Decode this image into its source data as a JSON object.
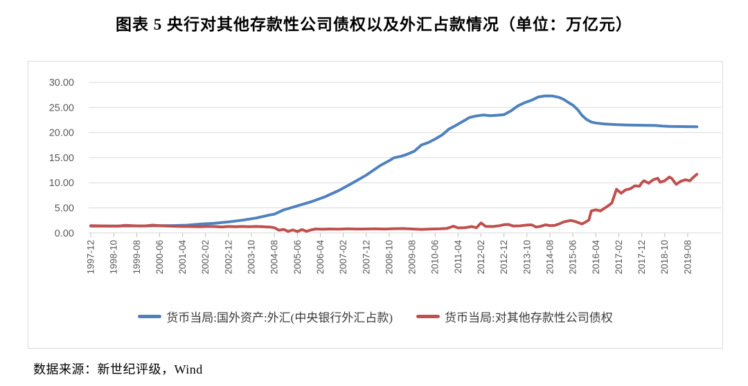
{
  "title": "图表 5  央行对其他存款性公司债权以及外汇占款情况（单位：万亿元）",
  "source_note": "数据来源：新世纪评级，Wind",
  "chart_data": {
    "type": "line",
    "title": "央行对其他存款性公司债权以及外汇占款情况",
    "unit": "万亿元",
    "grid": true,
    "legend_position": "bottom",
    "x_axis": {
      "encoding": "months since 1997-12 (tick every 10 months)",
      "tick_interval_months": 10,
      "tick_labels": [
        "1997-12",
        "1998-10",
        "1999-08",
        "2000-06",
        "2001-04",
        "2002-02",
        "2002-12",
        "2003-10",
        "2004-08",
        "2005-06",
        "2006-04",
        "2007-02",
        "2007-12",
        "2008-10",
        "2009-08",
        "2010-06",
        "2011-04",
        "2012-02",
        "2012-12",
        "2013-10",
        "2014-08",
        "2015-06",
        "2016-04",
        "2017-02",
        "2017-12",
        "2018-10",
        "2019-08"
      ]
    },
    "y_axis": {
      "min": 0,
      "max": 30,
      "step": 5,
      "tick_labels": [
        "0.00",
        "5.00",
        "10.00",
        "15.00",
        "20.00",
        "25.00",
        "30.00"
      ]
    },
    "series": [
      {
        "name": "货币当局:国外资产:外汇(中央银行外汇占款)",
        "color": "#4F81BD",
        "points": [
          [
            0,
            1.36
          ],
          [
            6,
            1.37
          ],
          [
            12,
            1.38
          ],
          [
            18,
            1.4
          ],
          [
            24,
            1.41
          ],
          [
            30,
            1.44
          ],
          [
            36,
            1.48
          ],
          [
            42,
            1.56
          ],
          [
            48,
            1.77
          ],
          [
            54,
            1.93
          ],
          [
            60,
            2.21
          ],
          [
            66,
            2.55
          ],
          [
            72,
            2.98
          ],
          [
            78,
            3.6
          ],
          [
            80,
            3.75
          ],
          [
            84,
            4.59
          ],
          [
            90,
            5.4
          ],
          [
            96,
            6.21
          ],
          [
            102,
            7.2
          ],
          [
            108,
            8.44
          ],
          [
            114,
            9.95
          ],
          [
            120,
            11.52
          ],
          [
            126,
            13.4
          ],
          [
            130,
            14.4
          ],
          [
            132,
            14.96
          ],
          [
            135,
            15.25
          ],
          [
            138,
            15.7
          ],
          [
            141,
            16.3
          ],
          [
            144,
            17.52
          ],
          [
            147,
            18.0
          ],
          [
            150,
            18.7
          ],
          [
            153,
            19.5
          ],
          [
            156,
            20.68
          ],
          [
            159,
            21.4
          ],
          [
            162,
            22.2
          ],
          [
            165,
            23.0
          ],
          [
            168,
            23.3
          ],
          [
            171,
            23.5
          ],
          [
            174,
            23.35
          ],
          [
            177,
            23.45
          ],
          [
            180,
            23.55
          ],
          [
            183,
            24.3
          ],
          [
            186,
            25.3
          ],
          [
            189,
            25.95
          ],
          [
            192,
            26.43
          ],
          [
            195,
            27.1
          ],
          [
            198,
            27.3
          ],
          [
            201,
            27.28
          ],
          [
            204,
            27.0
          ],
          [
            206,
            26.6
          ],
          [
            208,
            26.0
          ],
          [
            210,
            25.45
          ],
          [
            212,
            24.6
          ],
          [
            214,
            23.4
          ],
          [
            216,
            22.6
          ],
          [
            218,
            22.1
          ],
          [
            220,
            21.9
          ],
          [
            224,
            21.7
          ],
          [
            228,
            21.6
          ],
          [
            234,
            21.5
          ],
          [
            240,
            21.45
          ],
          [
            246,
            21.4
          ],
          [
            249,
            21.3
          ],
          [
            252,
            21.22
          ],
          [
            258,
            21.18
          ],
          [
            264,
            21.15
          ]
        ]
      },
      {
        "name": "货币当局:对其他存款性公司债权",
        "color": "#C0504D",
        "points": [
          [
            0,
            1.44
          ],
          [
            4,
            1.42
          ],
          [
            8,
            1.38
          ],
          [
            12,
            1.37
          ],
          [
            15,
            1.52
          ],
          [
            18,
            1.46
          ],
          [
            21,
            1.4
          ],
          [
            24,
            1.42
          ],
          [
            27,
            1.55
          ],
          [
            30,
            1.46
          ],
          [
            33,
            1.38
          ],
          [
            36,
            1.35
          ],
          [
            40,
            1.3
          ],
          [
            44,
            1.28
          ],
          [
            48,
            1.25
          ],
          [
            51,
            1.32
          ],
          [
            54,
            1.28
          ],
          [
            57,
            1.2
          ],
          [
            60,
            1.3
          ],
          [
            63,
            1.26
          ],
          [
            66,
            1.29
          ],
          [
            69,
            1.25
          ],
          [
            72,
            1.3
          ],
          [
            75,
            1.24
          ],
          [
            78,
            1.18
          ],
          [
            80,
            1.05
          ],
          [
            82,
            0.55
          ],
          [
            84,
            0.72
          ],
          [
            86,
            0.32
          ],
          [
            88,
            0.6
          ],
          [
            90,
            0.3
          ],
          [
            92,
            0.68
          ],
          [
            94,
            0.33
          ],
          [
            96,
            0.62
          ],
          [
            98,
            0.8
          ],
          [
            101,
            0.74
          ],
          [
            104,
            0.8
          ],
          [
            108,
            0.77
          ],
          [
            112,
            0.82
          ],
          [
            116,
            0.78
          ],
          [
            120,
            0.8
          ],
          [
            124,
            0.84
          ],
          [
            128,
            0.78
          ],
          [
            132,
            0.85
          ],
          [
            136,
            0.88
          ],
          [
            140,
            0.8
          ],
          [
            144,
            0.72
          ],
          [
            148,
            0.78
          ],
          [
            152,
            0.82
          ],
          [
            155,
            0.9
          ],
          [
            158,
            1.35
          ],
          [
            160,
            1.0
          ],
          [
            163,
            1.06
          ],
          [
            166,
            1.28
          ],
          [
            168,
            1.05
          ],
          [
            170,
            2.0
          ],
          [
            172,
            1.32
          ],
          [
            175,
            1.28
          ],
          [
            178,
            1.45
          ],
          [
            180,
            1.65
          ],
          [
            182,
            1.7
          ],
          [
            184,
            1.38
          ],
          [
            187,
            1.42
          ],
          [
            190,
            1.58
          ],
          [
            192,
            1.62
          ],
          [
            194,
            1.18
          ],
          [
            196,
            1.32
          ],
          [
            198,
            1.62
          ],
          [
            200,
            1.48
          ],
          [
            202,
            1.5
          ],
          [
            204,
            1.8
          ],
          [
            206,
            2.2
          ],
          [
            209,
            2.5
          ],
          [
            211,
            2.3
          ],
          [
            213,
            1.95
          ],
          [
            214,
            1.8
          ],
          [
            216,
            2.3
          ],
          [
            217,
            2.6
          ],
          [
            218,
            4.4
          ],
          [
            220,
            4.62
          ],
          [
            222,
            4.4
          ],
          [
            224,
            5.0
          ],
          [
            226,
            5.6
          ],
          [
            227,
            6.0
          ],
          [
            229,
            8.7
          ],
          [
            231,
            7.9
          ],
          [
            233,
            8.6
          ],
          [
            235,
            8.8
          ],
          [
            237,
            9.4
          ],
          [
            239,
            9.3
          ],
          [
            240,
            10.0
          ],
          [
            241,
            10.4
          ],
          [
            243,
            9.9
          ],
          [
            245,
            10.6
          ],
          [
            247,
            10.9
          ],
          [
            248,
            10.1
          ],
          [
            250,
            10.4
          ],
          [
            252,
            11.15
          ],
          [
            253,
            10.9
          ],
          [
            255,
            9.7
          ],
          [
            257,
            10.3
          ],
          [
            259,
            10.6
          ],
          [
            261,
            10.4
          ],
          [
            262,
            10.9
          ],
          [
            264,
            11.7
          ]
        ]
      }
    ]
  }
}
